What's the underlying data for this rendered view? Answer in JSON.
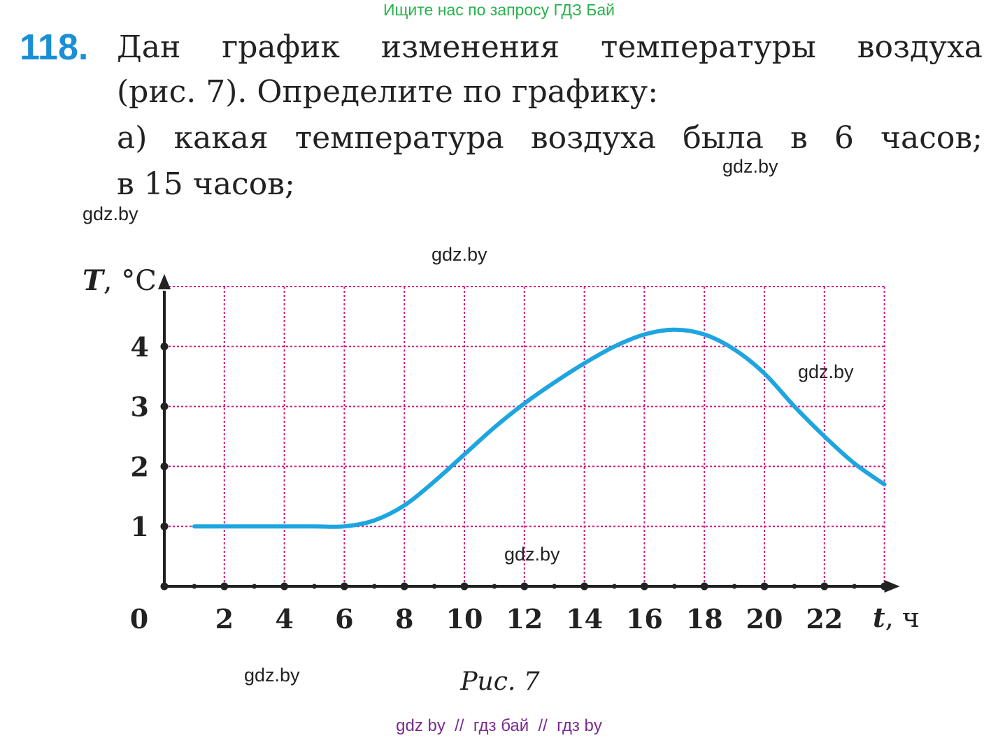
{
  "header": {
    "banner": "Ищите нас по запросу ГДЗ Бай"
  },
  "task": {
    "number": "118.",
    "lines": [
      "Дан график изменения температуры воздуха",
      "(рис. 7). Определите по графику:",
      "а) какая температура воздуха была в 6 часов;",
      "в 15 часов;"
    ]
  },
  "watermarks": [
    "gdz.by",
    "gdz.by",
    "gdz.by",
    "gdz.by",
    "gdz.by",
    "gdz.by"
  ],
  "chart_data": {
    "type": "line",
    "x_axis_label": {
      "var": "t",
      "unit": ", ч"
    },
    "y_axis_label": {
      "var": "T",
      "unit": ", °C"
    },
    "origin_label": "0",
    "x_ticks": [
      "2",
      "4",
      "6",
      "8",
      "10",
      "12",
      "14",
      "16",
      "18",
      "20",
      "22"
    ],
    "y_ticks": [
      "1",
      "2",
      "3",
      "4"
    ],
    "xlim": [
      0,
      24
    ],
    "ylim": [
      0,
      5
    ],
    "grid": true,
    "grid_color": "#d6197c",
    "line_color": "#1ea5e0",
    "series": [
      {
        "x": [
          1,
          2,
          3,
          4,
          5,
          6,
          7,
          8,
          9,
          10,
          11,
          12,
          13,
          14,
          15,
          16,
          17,
          18,
          19,
          20,
          21,
          22,
          23,
          24
        ],
        "y": [
          1.0,
          1.0,
          1.0,
          1.0,
          1.0,
          1.0,
          1.1,
          1.35,
          1.75,
          2.2,
          2.65,
          3.05,
          3.4,
          3.72,
          4.0,
          4.2,
          4.28,
          4.2,
          3.95,
          3.55,
          3.0,
          2.5,
          2.05,
          1.7
        ]
      }
    ]
  },
  "caption": "Рис. 7",
  "footer": "gdz by  //  гдз бай  //  гдз by"
}
